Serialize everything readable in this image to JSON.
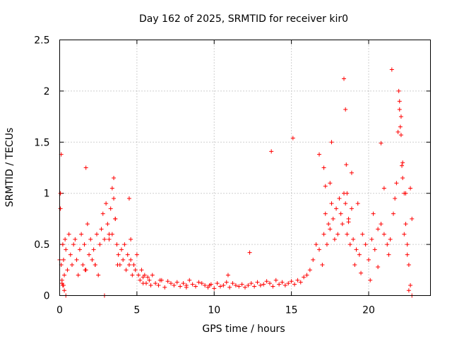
{
  "chart_data": {
    "type": "scatter",
    "title": "Day 162 of 2025, SRMTID for receiver kir0",
    "xlabel": "GPS time / hours",
    "ylabel": "SRMTID / TECUs",
    "xlim": [
      0,
      24
    ],
    "ylim": [
      0,
      2.5
    ],
    "xticks": [
      0,
      5,
      10,
      15,
      20
    ],
    "xtick_labels": [
      "0",
      "5",
      "10",
      "15",
      "20"
    ],
    "yticks": [
      0,
      0.5,
      1,
      1.5,
      2,
      2.5
    ],
    "ytick_labels": [
      "0",
      "0.5",
      "1",
      "1.5",
      "2",
      "2.5"
    ],
    "grid": true,
    "legend": "none",
    "marker": "+",
    "series": [
      {
        "name": "SRMTID",
        "color": "#ff0000",
        "x": [
          0.05,
          0.1,
          0.15,
          0.2,
          0.25,
          0.3,
          0.35,
          0.4,
          0.5,
          0.6,
          0.7,
          0.8,
          0.9,
          1.0,
          1.1,
          1.2,
          1.3,
          1.4,
          1.5,
          1.6,
          1.7,
          1.8,
          1.9,
          2.0,
          2.1,
          2.2,
          2.3,
          2.4,
          2.5,
          2.6,
          2.7,
          2.8,
          2.9,
          3.0,
          3.1,
          3.2,
          3.3,
          3.4,
          3.5,
          3.6,
          3.7,
          3.8,
          3.9,
          4.0,
          4.1,
          4.2,
          4.3,
          4.4,
          4.5,
          4.6,
          4.7,
          4.8,
          4.9,
          5.0,
          5.1,
          5.2,
          5.3,
          5.4,
          5.5,
          5.6,
          5.7,
          5.8,
          5.9,
          6.0,
          6.2,
          6.4,
          6.6,
          6.8,
          7.0,
          7.2,
          7.4,
          7.6,
          7.8,
          8.0,
          8.2,
          8.4,
          8.6,
          8.8,
          9.0,
          9.2,
          9.4,
          9.6,
          9.8,
          10.0,
          10.2,
          10.4,
          10.6,
          10.8,
          11.0,
          11.2,
          11.4,
          11.6,
          11.8,
          12.0,
          12.2,
          12.4,
          12.6,
          12.8,
          13.0,
          13.2,
          13.4,
          13.6,
          13.8,
          14.0,
          14.2,
          14.4,
          14.6,
          14.8,
          15.0,
          15.2,
          15.4,
          15.6,
          15.8,
          16.0,
          16.2,
          16.4,
          16.6,
          16.8,
          17.0,
          17.1,
          17.2,
          17.3,
          17.4,
          17.5,
          17.6,
          17.7,
          17.8,
          17.9,
          18.0,
          18.1,
          18.2,
          18.3,
          18.4,
          18.5,
          18.6,
          18.7,
          18.8,
          18.9,
          19.0,
          19.2,
          19.4,
          19.6,
          19.8,
          20.0,
          20.2,
          20.4,
          20.6,
          20.8,
          21.0,
          21.2,
          21.4,
          21.6,
          21.8,
          21.9,
          22.0,
          22.1,
          22.2,
          22.3,
          22.4,
          22.5,
          22.6,
          22.7,
          22.8,
          0.0,
          0.2,
          0.4,
          0.3,
          0.05,
          0.1,
          1.7,
          3.5,
          3.6,
          3.4,
          4.5,
          4.6,
          0.15,
          0.25,
          1.65,
          2.3,
          2.9,
          3.2,
          3.75,
          5.4,
          6.5,
          8.2,
          9.7,
          10.9,
          12.3,
          13.7,
          15.1,
          16.8,
          17.2,
          17.6,
          18.4,
          18.5,
          18.55,
          18.6,
          18.7,
          19.1,
          19.5,
          20.1,
          20.6,
          21.0,
          21.5,
          21.95,
          22.0,
          22.05,
          22.1,
          22.15,
          22.2,
          22.3,
          22.5,
          22.6,
          22.7,
          22.8,
          17.1,
          17.5,
          18.9,
          19.3,
          20.3,
          20.8,
          21.3,
          21.7,
          22.4
        ],
        "y": [
          0.85,
          0.3,
          0.15,
          0.5,
          0.35,
          0.2,
          0.55,
          0.45,
          0.25,
          0.6,
          0.4,
          0.3,
          0.5,
          0.55,
          0.35,
          0.2,
          0.45,
          0.6,
          0.3,
          0.5,
          0.25,
          0.7,
          0.4,
          0.55,
          0.35,
          0.45,
          0.3,
          0.6,
          0.2,
          0.5,
          0.65,
          0.8,
          0.55,
          0.9,
          0.7,
          0.6,
          0.85,
          1.05,
          0.95,
          0.75,
          0.5,
          0.4,
          0.3,
          0.45,
          0.35,
          0.5,
          0.25,
          0.4,
          0.3,
          0.35,
          0.2,
          0.3,
          0.25,
          0.4,
          0.2,
          0.15,
          0.25,
          0.18,
          0.2,
          0.12,
          0.18,
          0.15,
          0.1,
          0.2,
          0.12,
          0.1,
          0.15,
          0.08,
          0.14,
          0.12,
          0.1,
          0.13,
          0.09,
          0.12,
          0.1,
          0.15,
          0.11,
          0.09,
          0.13,
          0.12,
          0.1,
          0.08,
          0.11,
          0.07,
          0.12,
          0.09,
          0.1,
          0.13,
          0.08,
          0.12,
          0.1,
          0.09,
          0.11,
          0.08,
          0.1,
          0.12,
          0.09,
          0.13,
          0.1,
          0.11,
          0.14,
          0.12,
          0.09,
          0.15,
          0.11,
          0.13,
          0.1,
          0.12,
          0.14,
          0.11,
          0.15,
          0.13,
          0.18,
          0.2,
          0.25,
          0.35,
          0.5,
          0.45,
          0.3,
          0.6,
          0.8,
          0.5,
          0.7,
          0.65,
          0.9,
          0.75,
          0.55,
          0.85,
          0.6,
          0.95,
          0.8,
          0.7,
          1.0,
          0.9,
          0.6,
          0.75,
          0.5,
          0.85,
          0.55,
          0.45,
          0.4,
          0.6,
          0.5,
          0.35,
          0.55,
          0.45,
          0.65,
          0.7,
          0.6,
          0.5,
          0.55,
          0.8,
          1.1,
          1.6,
          1.9,
          1.75,
          1.3,
          1.0,
          0.7,
          0.5,
          0.3,
          1.05,
          0.75,
          0.35,
          0.1,
          0.0,
          0.05,
          1.0,
          1.38,
          1.25,
          1.15,
          0.75,
          0.6,
          0.95,
          0.55,
          0.12,
          0.1,
          0.25,
          0.3,
          0.0,
          0.55,
          0.3,
          0.12,
          0.15,
          0.08,
          0.1,
          0.2,
          0.42,
          1.41,
          1.54,
          1.38,
          1.07,
          1.5,
          2.12,
          1.82,
          1.28,
          1.0,
          0.72,
          0.3,
          0.22,
          0.15,
          0.28,
          1.05,
          2.21,
          2.0,
          1.82,
          1.65,
          1.57,
          1.27,
          1.15,
          0.6,
          0.4,
          0.05,
          0.1,
          0.0,
          1.25,
          1.1,
          1.2,
          0.9,
          0.8,
          1.49,
          0.4,
          0.95,
          1.0
        ]
      }
    ]
  }
}
